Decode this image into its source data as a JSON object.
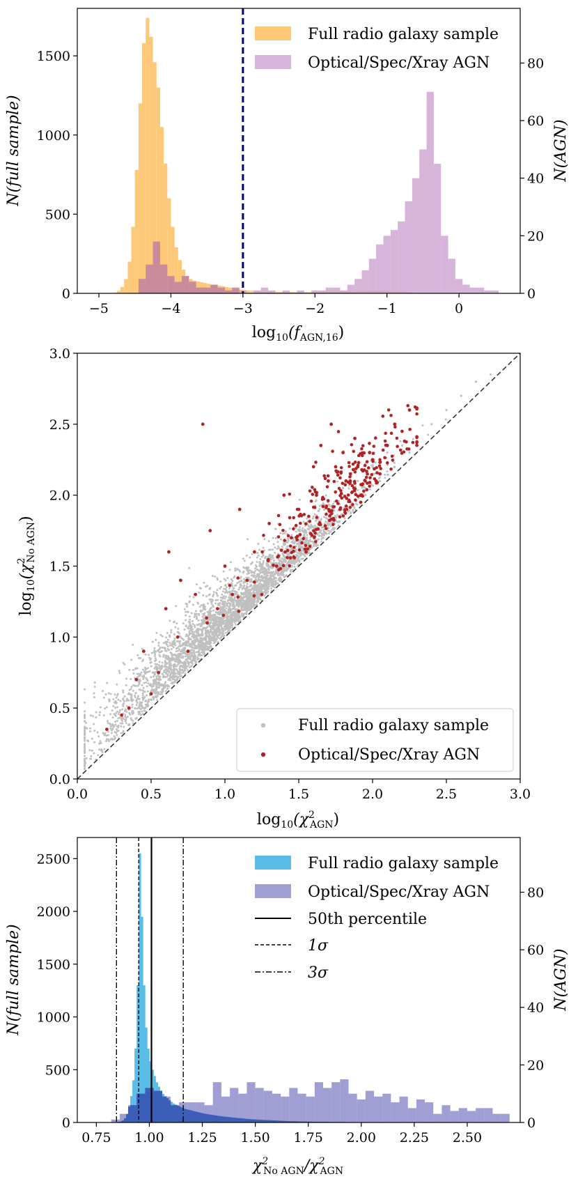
{
  "colors": {
    "full_p1": "#fdc877",
    "agn_p1": "#c99bce",
    "agn_p1_front": "#b86a7a",
    "gray_pts": "#c0c0c0",
    "red_pts": "#b22222",
    "full_p3": "#5bbde6",
    "agn_p3": "#7f7fc5",
    "overlap_p3": "#3b5fb8",
    "threshold_line": "#00007f"
  },
  "chart_data": [
    {
      "type": "bar",
      "title": "",
      "xlabel_base": "log",
      "xlabel_sub": "10",
      "xlabel_rest": "(f",
      "xlabel_rest_sub": "AGN,16",
      "xlabel_close": ")",
      "ylabel": "N(full sample)",
      "ylabel_right": "N(AGN)",
      "xlim": [
        -5.3,
        0.85
      ],
      "ylim": [
        0,
        1800
      ],
      "ylim_right": [
        0,
        99
      ],
      "xticks": [
        -5,
        -4,
        -3,
        -2,
        -1,
        0
      ],
      "xtick_labels": [
        "−5",
        "−4",
        "−3",
        "−2",
        "−1",
        "0"
      ],
      "yticks": [
        0,
        500,
        1000,
        1500
      ],
      "ytick_labels": [
        "0",
        "500",
        "1000",
        "1500"
      ],
      "yticks_right": [
        0,
        20,
        40,
        60,
        80
      ],
      "ytick_labels_right": [
        "0",
        "20",
        "40",
        "60",
        "80"
      ],
      "threshold_x": -3.0,
      "legend": [
        "Full radio galaxy sample",
        "Optical/Spec/Xray AGN"
      ],
      "legend_position": "top-right",
      "series": [
        {
          "name": "Full radio galaxy sample",
          "bin_start": -4.8,
          "bin_width": 0.05,
          "values": [
            5,
            15,
            40,
            90,
            200,
            420,
            780,
            1200,
            1580,
            1740,
            1620,
            1460,
            1300,
            1050,
            820,
            600,
            420,
            290,
            210,
            150,
            110,
            90,
            80,
            75,
            70,
            65,
            60,
            55,
            52,
            48,
            45,
            40,
            36,
            32,
            28,
            24,
            20,
            18,
            16,
            15,
            14,
            13,
            12,
            12,
            11,
            11,
            10,
            10,
            10,
            10,
            9,
            9,
            9,
            9,
            9,
            9,
            9,
            10,
            10,
            10,
            11,
            11,
            12,
            12,
            12,
            13,
            13,
            14,
            14,
            14,
            15,
            15,
            15,
            15,
            15,
            14,
            14,
            13,
            12,
            11,
            10,
            8,
            6,
            4,
            3,
            2,
            1,
            1,
            0,
            0,
            0,
            0,
            0,
            0,
            0,
            0
          ]
        },
        {
          "name": "Optical/Spec/Xray AGN",
          "edges": [
            -4.45,
            -4.35,
            -4.25,
            -4.15,
            -4.05,
            -3.95,
            -3.85,
            -3.75,
            -3.65,
            -3.55,
            -3.45,
            -3.35,
            -3.25,
            -3.15,
            -3.05,
            -2.95,
            -2.85,
            -2.75,
            -2.65,
            -2.55,
            -2.45,
            -2.35,
            -2.25,
            -2.15,
            -2.05,
            -1.95,
            -1.85,
            -1.75,
            -1.65,
            -1.55,
            -1.45,
            -1.35,
            -1.25,
            -1.15,
            -1.05,
            -0.95,
            -0.85,
            -0.75,
            -0.65,
            -0.55,
            -0.45,
            -0.35,
            -0.25,
            -0.15,
            -0.05,
            0.05,
            0.15,
            0.25,
            0.35,
            0.45,
            0.55
          ],
          "values": [
            5,
            10,
            18,
            10,
            6,
            4,
            6,
            4,
            2,
            2,
            3,
            2,
            1,
            2,
            1,
            0,
            1,
            2,
            1,
            0,
            1,
            0,
            1,
            0,
            1,
            1,
            2,
            2,
            1,
            3,
            5,
            8,
            12,
            17,
            20,
            22,
            25,
            32,
            40,
            50,
            70,
            45,
            20,
            12,
            5,
            3,
            2,
            2,
            1,
            1
          ]
        }
      ]
    },
    {
      "type": "scatter",
      "xlabel_base": "log",
      "xlabel_sub": "10",
      "xlabel_rest": "(χ",
      "xlabel_sup": "2",
      "xlabel_rest_sub": "AGN",
      "xlabel_close": ")",
      "ylabel_base": "log",
      "ylabel_sub": "10",
      "ylabel_rest": "(χ",
      "ylabel_sup": "2",
      "ylabel_rest_sub": "No AGN",
      "ylabel_close": ")",
      "xlim": [
        0.0,
        3.0
      ],
      "ylim": [
        0.0,
        3.0
      ],
      "xticks": [
        0.0,
        0.5,
        1.0,
        1.5,
        2.0,
        2.5,
        3.0
      ],
      "xtick_labels": [
        "0.0",
        "0.5",
        "1.0",
        "1.5",
        "2.0",
        "2.5",
        "3.0"
      ],
      "yticks": [
        0.0,
        0.5,
        1.0,
        1.5,
        2.0,
        2.5,
        3.0
      ],
      "ytick_labels": [
        "0.0",
        "0.5",
        "1.0",
        "1.5",
        "2.0",
        "2.5",
        "3.0"
      ],
      "legend": [
        "Full radio galaxy sample",
        "Optical/Spec/Xray AGN"
      ],
      "legend_position": "lower-right",
      "one_to_one_line": true,
      "series": [
        {
          "name": "Full radio galaxy sample",
          "points": [
            [
              0.1,
              0.2
            ],
            [
              0.15,
              0.25
            ],
            [
              0.2,
              0.28
            ],
            [
              0.25,
              0.3
            ],
            [
              0.3,
              0.42
            ],
            [
              0.35,
              0.38
            ],
            [
              0.4,
              0.55
            ],
            [
              0.45,
              0.5
            ],
            [
              0.5,
              0.62
            ],
            [
              0.55,
              0.6
            ],
            [
              0.6,
              0.75
            ],
            [
              0.65,
              0.72
            ],
            [
              0.7,
              0.9
            ],
            [
              0.75,
              0.85
            ],
            [
              0.8,
              1.0
            ],
            [
              0.85,
              0.95
            ],
            [
              0.9,
              1.15
            ],
            [
              0.95,
              1.05
            ],
            [
              1.0,
              1.25
            ],
            [
              1.05,
              1.15
            ],
            [
              1.1,
              1.35
            ],
            [
              1.15,
              1.25
            ],
            [
              1.2,
              1.45
            ],
            [
              1.25,
              1.35
            ],
            [
              1.3,
              1.55
            ],
            [
              1.35,
              1.45
            ],
            [
              1.4,
              1.65
            ],
            [
              1.45,
              1.55
            ],
            [
              1.5,
              1.75
            ],
            [
              1.55,
              1.65
            ],
            [
              1.6,
              1.85
            ],
            [
              1.65,
              1.75
            ],
            [
              1.7,
              1.95
            ],
            [
              1.75,
              1.85
            ],
            [
              1.8,
              2.05
            ],
            [
              1.85,
              1.95
            ],
            [
              1.9,
              2.1
            ],
            [
              1.95,
              2.05
            ],
            [
              2.0,
              2.2
            ],
            [
              2.05,
              2.1
            ],
            [
              2.1,
              2.3
            ],
            [
              2.15,
              2.2
            ],
            [
              2.2,
              2.35
            ],
            [
              2.25,
              2.3
            ],
            [
              2.3,
              2.4
            ],
            [
              2.4,
              2.5
            ],
            [
              2.5,
              2.6
            ],
            [
              2.6,
              2.7
            ],
            [
              2.7,
              2.8
            ],
            [
              2.8,
              2.85
            ]
          ]
        },
        {
          "name": "Optical/Spec/Xray AGN",
          "points": [
            [
              0.2,
              0.35
            ],
            [
              0.3,
              0.45
            ],
            [
              0.35,
              0.5
            ],
            [
              0.4,
              0.7
            ],
            [
              0.45,
              0.9
            ],
            [
              0.5,
              0.6
            ],
            [
              0.55,
              0.75
            ],
            [
              0.6,
              1.2
            ],
            [
              0.62,
              1.6
            ],
            [
              0.68,
              1.0
            ],
            [
              0.7,
              1.4
            ],
            [
              0.75,
              0.9
            ],
            [
              0.8,
              1.3
            ],
            [
              0.85,
              2.5
            ],
            [
              0.88,
              1.1
            ],
            [
              0.9,
              1.75
            ],
            [
              0.95,
              1.2
            ],
            [
              1.0,
              1.5
            ],
            [
              1.05,
              1.3
            ],
            [
              1.1,
              1.9
            ],
            [
              1.15,
              1.4
            ],
            [
              1.2,
              1.6
            ],
            [
              1.25,
              1.3
            ],
            [
              1.3,
              1.8
            ],
            [
              1.35,
              1.5
            ],
            [
              1.4,
              2.0
            ],
            [
              1.45,
              1.7
            ],
            [
              1.5,
              1.9
            ],
            [
              1.55,
              1.6
            ],
            [
              1.6,
              2.2
            ],
            [
              1.62,
              2.0
            ],
            [
              1.65,
              2.35
            ],
            [
              1.7,
              2.1
            ],
            [
              1.72,
              2.5
            ],
            [
              1.75,
              2.2
            ],
            [
              1.78,
              1.9
            ],
            [
              1.8,
              2.3
            ],
            [
              1.82,
              2.1
            ],
            [
              1.85,
              2.15
            ],
            [
              1.88,
              2.4
            ],
            [
              1.9,
              2.2
            ],
            [
              1.92,
              1.95
            ],
            [
              1.95,
              2.1
            ],
            [
              1.98,
              2.3
            ],
            [
              2.0,
              2.25
            ],
            [
              2.05,
              2.15
            ],
            [
              2.1,
              2.35
            ],
            [
              2.15,
              2.5
            ],
            [
              2.2,
              2.45
            ],
            [
              2.25,
              2.6
            ]
          ]
        }
      ]
    },
    {
      "type": "bar",
      "xlabel_base": "χ",
      "xlabel_sup": "2",
      "xlabel_sub": "No AGN",
      "xlabel_mid": "/χ",
      "xlabel_sup2": "2",
      "xlabel_sub2": "AGN",
      "ylabel": "N(full sample)",
      "ylabel_right": "N(AGN)",
      "xlim": [
        0.66,
        2.75
      ],
      "ylim": [
        0,
        2700
      ],
      "ylim_right": [
        0,
        99
      ],
      "xticks": [
        0.75,
        1.0,
        1.25,
        1.5,
        1.75,
        2.0,
        2.25,
        2.5
      ],
      "xtick_labels": [
        "0.75",
        "1.00",
        "1.25",
        "1.50",
        "1.75",
        "2.00",
        "2.25",
        "2.50"
      ],
      "yticks": [
        0,
        500,
        1000,
        1500,
        2000,
        2500
      ],
      "ytick_labels": [
        "0",
        "500",
        "1000",
        "1500",
        "2000",
        "2500"
      ],
      "yticks_right": [
        0,
        20,
        40,
        60,
        80
      ],
      "ytick_labels_right": [
        "0",
        "20",
        "40",
        "60",
        "80"
      ],
      "median": 1.01,
      "sigma1": [
        0.95,
        1.16
      ],
      "sigma3": [
        0.845,
        1.16
      ],
      "legend": [
        "Full radio galaxy sample",
        "Optical/Spec/Xray AGN",
        "50th percentile",
        "1σ",
        "3σ"
      ],
      "legend_position": "top-right",
      "series": [
        {
          "name": "Full radio galaxy sample",
          "bin_start": 0.83,
          "bin_width": 0.01,
          "values": [
            2,
            4,
            6,
            10,
            20,
            40,
            80,
            150,
            250,
            400,
            700,
            1300,
            2550,
            1950,
            1300,
            900,
            700,
            580,
            500,
            440,
            380,
            340,
            300,
            270,
            250,
            230,
            210,
            195,
            180,
            170,
            160,
            150,
            140,
            130,
            125,
            120,
            115,
            110,
            105,
            100,
            95,
            90,
            86,
            82,
            78,
            75,
            72,
            69,
            66,
            63,
            60,
            57,
            55,
            53,
            51,
            49,
            47,
            45,
            43,
            41,
            39,
            37,
            35,
            33,
            31,
            30,
            29,
            28,
            27,
            26,
            25,
            24,
            23,
            22,
            21,
            20,
            19,
            18,
            17,
            16,
            15,
            14,
            13,
            12,
            12,
            11,
            11,
            10,
            10,
            9,
            9,
            8,
            8,
            8,
            7,
            7,
            7,
            6,
            6,
            6,
            6,
            5,
            5,
            5,
            5,
            4,
            4,
            4,
            4,
            4,
            3,
            3,
            3,
            3,
            3,
            3,
            3,
            3,
            3,
            3,
            3,
            3,
            3,
            3,
            3,
            3,
            3,
            2,
            2,
            2,
            2,
            2,
            2,
            2,
            2,
            2,
            2,
            2,
            2,
            2,
            2,
            2,
            2,
            2,
            2,
            2,
            2,
            2,
            2,
            2,
            2,
            2,
            2,
            2,
            2,
            2,
            2,
            2,
            2,
            2,
            2,
            2,
            2,
            2,
            2,
            2,
            2,
            2,
            2,
            2,
            2,
            2,
            2,
            2,
            2,
            1,
            1,
            1,
            1,
            1,
            1,
            1,
            1,
            1,
            1
          ]
        },
        {
          "name": "Optical/Spec/Xray AGN",
          "bin_start": 0.82,
          "bin_width": 0.04,
          "values": [
            1,
            3,
            6,
            10,
            12,
            11,
            9,
            6,
            7,
            7,
            7,
            6,
            14,
            9,
            12,
            10,
            14,
            12,
            11,
            10,
            9,
            12,
            10,
            9,
            14,
            12,
            14,
            15,
            10,
            8,
            11,
            9,
            10,
            7,
            9,
            5,
            8,
            7,
            3,
            6,
            4,
            5,
            4,
            5,
            5,
            3,
            3
          ]
        }
      ]
    }
  ]
}
